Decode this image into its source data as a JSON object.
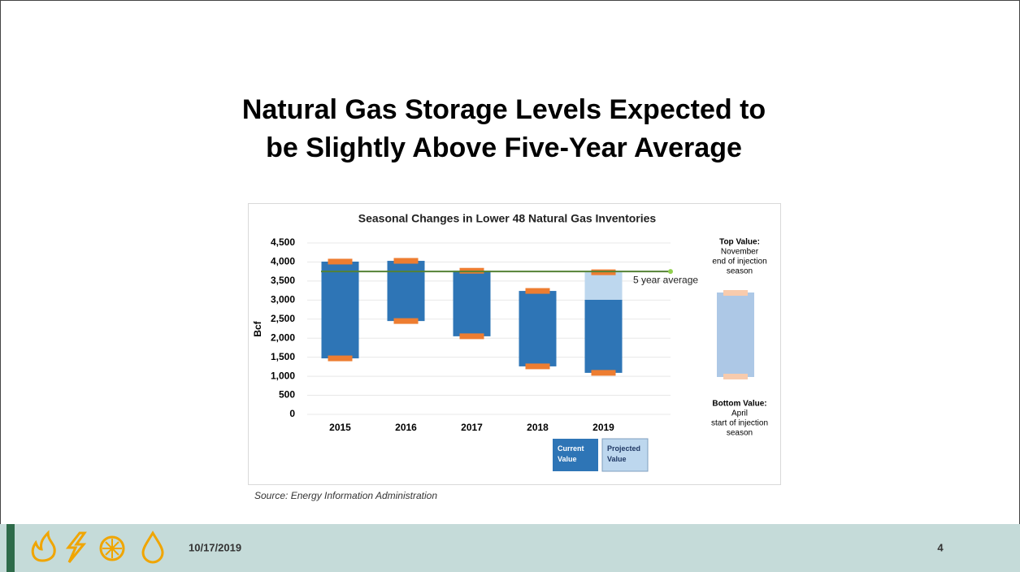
{
  "slide_title": [
    "Natural Gas Storage Levels Expected to",
    "be Slightly Above Five-Year Average"
  ],
  "source": "Source: Energy Information Administration",
  "footer": {
    "date": "10/17/2019",
    "page": "4"
  },
  "chart_data": {
    "type": "range-bar",
    "title": "Seasonal Changes in Lower 48 Natural Gas Inventories",
    "y_label": "Bcf",
    "categories": [
      "2015",
      "2016",
      "2017",
      "2018",
      "2019"
    ],
    "series": [
      {
        "name": "Current Value",
        "color": "#2e75b6",
        "low": [
          1470,
          2450,
          2050,
          1260,
          1090
        ],
        "high": [
          4010,
          4030,
          3770,
          3240,
          3010
        ]
      },
      {
        "name": "Projected Value",
        "color": "#bdd7ee",
        "low": [
          null,
          null,
          null,
          null,
          3010
        ],
        "high": [
          null,
          null,
          null,
          null,
          3730
        ]
      }
    ],
    "marker_color": "#ed7d31",
    "average": {
      "label": "5 year average",
      "value": 3750,
      "color": "#548235"
    },
    "ylim": [
      0,
      4500
    ],
    "yticks": [
      0,
      500,
      {
        "value": 1000,
        "label": "1,000"
      },
      {
        "value": 1500,
        "label": "1,500"
      },
      {
        "value": 2000,
        "label": "2,000"
      },
      {
        "value": 2500,
        "label": "2,500"
      },
      {
        "value": 3000,
        "label": "3,000"
      },
      {
        "value": 3500,
        "label": "3,500"
      },
      {
        "value": 4000,
        "label": "4,000"
      },
      {
        "value": 4500,
        "label": "4,500"
      }
    ],
    "grid": true,
    "key_top": [
      "Top Value:",
      "November",
      "end of injection",
      "season"
    ],
    "key_bottom": [
      "Bottom Value:",
      "April",
      "start of injection",
      "season"
    ]
  }
}
